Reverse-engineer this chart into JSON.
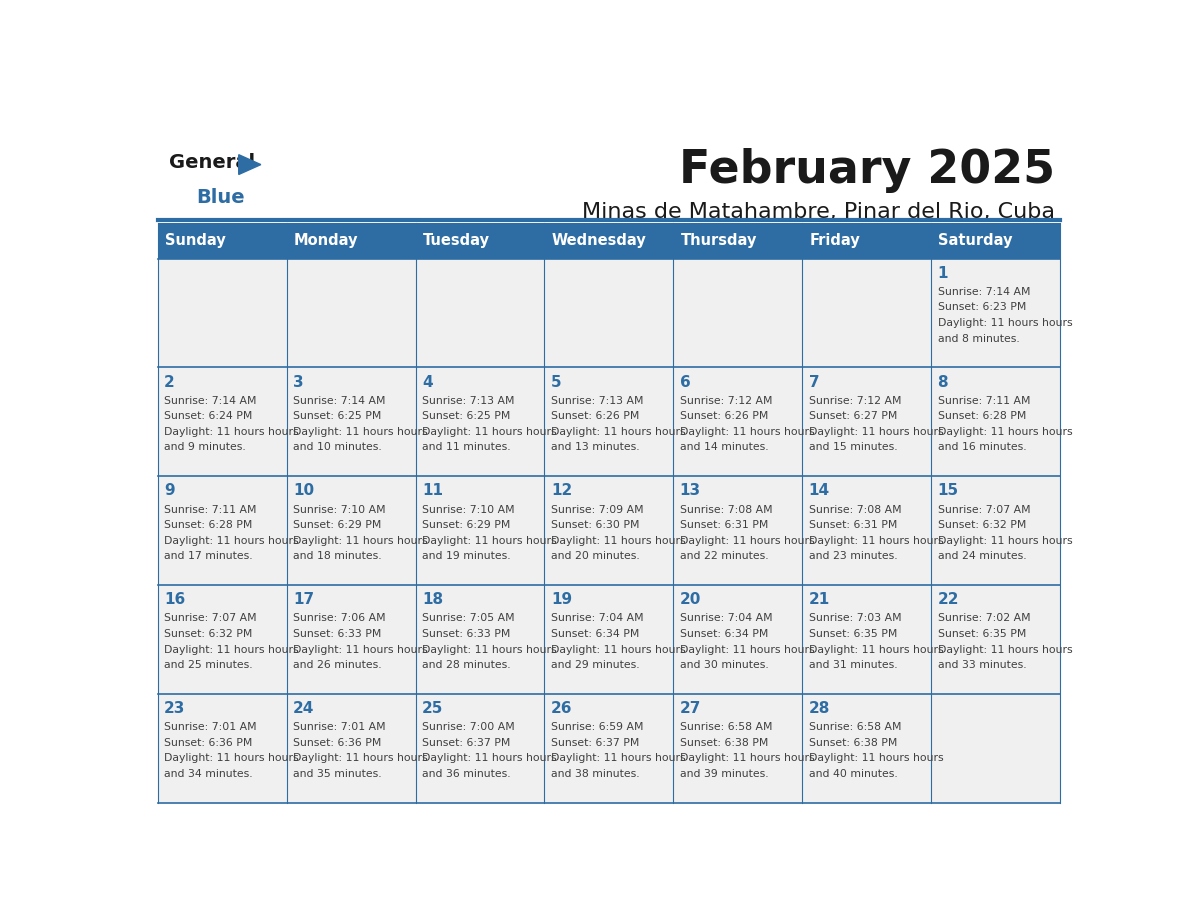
{
  "title": "February 2025",
  "subtitle": "Minas de Matahambre, Pinar del Rio, Cuba",
  "days_of_week": [
    "Sunday",
    "Monday",
    "Tuesday",
    "Wednesday",
    "Thursday",
    "Friday",
    "Saturday"
  ],
  "header_bg": "#2E6DA4",
  "header_text": "#FFFFFF",
  "cell_bg_light": "#F0F0F0",
  "cell_bg_white": "#FFFFFF",
  "grid_line_color": "#2E6DA4",
  "day_number_color": "#2E6DA4",
  "info_text_color": "#404040",
  "title_color": "#1a1a1a",
  "subtitle_color": "#1a1a1a",
  "logo_general_color": "#1a1a1a",
  "logo_blue_color": "#2E6DA4",
  "calendar_data": [
    {
      "day": 1,
      "col": 6,
      "row": 0,
      "sunrise": "7:14 AM",
      "sunset": "6:23 PM",
      "daylight": "11 hours and 8 minutes"
    },
    {
      "day": 2,
      "col": 0,
      "row": 1,
      "sunrise": "7:14 AM",
      "sunset": "6:24 PM",
      "daylight": "11 hours and 9 minutes"
    },
    {
      "day": 3,
      "col": 1,
      "row": 1,
      "sunrise": "7:14 AM",
      "sunset": "6:25 PM",
      "daylight": "11 hours and 10 minutes"
    },
    {
      "day": 4,
      "col": 2,
      "row": 1,
      "sunrise": "7:13 AM",
      "sunset": "6:25 PM",
      "daylight": "11 hours and 11 minutes"
    },
    {
      "day": 5,
      "col": 3,
      "row": 1,
      "sunrise": "7:13 AM",
      "sunset": "6:26 PM",
      "daylight": "11 hours and 13 minutes"
    },
    {
      "day": 6,
      "col": 4,
      "row": 1,
      "sunrise": "7:12 AM",
      "sunset": "6:26 PM",
      "daylight": "11 hours and 14 minutes"
    },
    {
      "day": 7,
      "col": 5,
      "row": 1,
      "sunrise": "7:12 AM",
      "sunset": "6:27 PM",
      "daylight": "11 hours and 15 minutes"
    },
    {
      "day": 8,
      "col": 6,
      "row": 1,
      "sunrise": "7:11 AM",
      "sunset": "6:28 PM",
      "daylight": "11 hours and 16 minutes"
    },
    {
      "day": 9,
      "col": 0,
      "row": 2,
      "sunrise": "7:11 AM",
      "sunset": "6:28 PM",
      "daylight": "11 hours and 17 minutes"
    },
    {
      "day": 10,
      "col": 1,
      "row": 2,
      "sunrise": "7:10 AM",
      "sunset": "6:29 PM",
      "daylight": "11 hours and 18 minutes"
    },
    {
      "day": 11,
      "col": 2,
      "row": 2,
      "sunrise": "7:10 AM",
      "sunset": "6:29 PM",
      "daylight": "11 hours and 19 minutes"
    },
    {
      "day": 12,
      "col": 3,
      "row": 2,
      "sunrise": "7:09 AM",
      "sunset": "6:30 PM",
      "daylight": "11 hours and 20 minutes"
    },
    {
      "day": 13,
      "col": 4,
      "row": 2,
      "sunrise": "7:08 AM",
      "sunset": "6:31 PM",
      "daylight": "11 hours and 22 minutes"
    },
    {
      "day": 14,
      "col": 5,
      "row": 2,
      "sunrise": "7:08 AM",
      "sunset": "6:31 PM",
      "daylight": "11 hours and 23 minutes"
    },
    {
      "day": 15,
      "col": 6,
      "row": 2,
      "sunrise": "7:07 AM",
      "sunset": "6:32 PM",
      "daylight": "11 hours and 24 minutes"
    },
    {
      "day": 16,
      "col": 0,
      "row": 3,
      "sunrise": "7:07 AM",
      "sunset": "6:32 PM",
      "daylight": "11 hours and 25 minutes"
    },
    {
      "day": 17,
      "col": 1,
      "row": 3,
      "sunrise": "7:06 AM",
      "sunset": "6:33 PM",
      "daylight": "11 hours and 26 minutes"
    },
    {
      "day": 18,
      "col": 2,
      "row": 3,
      "sunrise": "7:05 AM",
      "sunset": "6:33 PM",
      "daylight": "11 hours and 28 minutes"
    },
    {
      "day": 19,
      "col": 3,
      "row": 3,
      "sunrise": "7:04 AM",
      "sunset": "6:34 PM",
      "daylight": "11 hours and 29 minutes"
    },
    {
      "day": 20,
      "col": 4,
      "row": 3,
      "sunrise": "7:04 AM",
      "sunset": "6:34 PM",
      "daylight": "11 hours and 30 minutes"
    },
    {
      "day": 21,
      "col": 5,
      "row": 3,
      "sunrise": "7:03 AM",
      "sunset": "6:35 PM",
      "daylight": "11 hours and 31 minutes"
    },
    {
      "day": 22,
      "col": 6,
      "row": 3,
      "sunrise": "7:02 AM",
      "sunset": "6:35 PM",
      "daylight": "11 hours and 33 minutes"
    },
    {
      "day": 23,
      "col": 0,
      "row": 4,
      "sunrise": "7:01 AM",
      "sunset": "6:36 PM",
      "daylight": "11 hours and 34 minutes"
    },
    {
      "day": 24,
      "col": 1,
      "row": 4,
      "sunrise": "7:01 AM",
      "sunset": "6:36 PM",
      "daylight": "11 hours and 35 minutes"
    },
    {
      "day": 25,
      "col": 2,
      "row": 4,
      "sunrise": "7:00 AM",
      "sunset": "6:37 PM",
      "daylight": "11 hours and 36 minutes"
    },
    {
      "day": 26,
      "col": 3,
      "row": 4,
      "sunrise": "6:59 AM",
      "sunset": "6:37 PM",
      "daylight": "11 hours and 38 minutes"
    },
    {
      "day": 27,
      "col": 4,
      "row": 4,
      "sunrise": "6:58 AM",
      "sunset": "6:38 PM",
      "daylight": "11 hours and 39 minutes"
    },
    {
      "day": 28,
      "col": 5,
      "row": 4,
      "sunrise": "6:58 AM",
      "sunset": "6:38 PM",
      "daylight": "11 hours and 40 minutes"
    }
  ],
  "num_rows": 5,
  "num_cols": 7
}
